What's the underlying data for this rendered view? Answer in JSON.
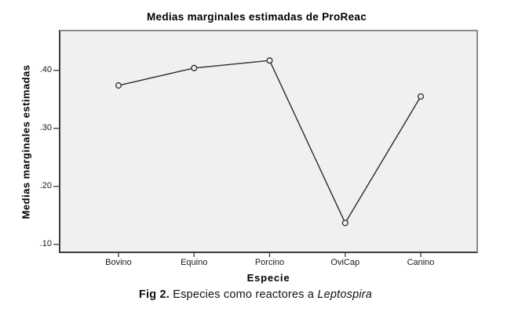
{
  "chart_data": {
    "type": "line",
    "title": "Medias marginales estimadas de ProReac",
    "xlabel": "Especie",
    "ylabel": "Medias marginales estimadas",
    "categories": [
      "Bovino",
      "Equino",
      "Porcino",
      "OviCap",
      "Canino"
    ],
    "values": [
      0.374,
      0.404,
      0.417,
      0.137,
      0.355
    ],
    "ylim": [
      0.085,
      0.47
    ],
    "yticks": [
      0.4,
      0.3,
      0.2,
      0.1
    ],
    "ytick_labels": [
      ".40",
      ".30",
      ".20",
      ".10"
    ],
    "grid": false,
    "legend": "none",
    "marker": "open-circle",
    "line_color": "#2b2b2b",
    "plot_bg": "#f0f0f0",
    "frame_color": "#8c8c8c",
    "axis_color": "#3d3d3d"
  },
  "caption": {
    "fig_label": "Fig 2.",
    "text": " Especies como reactores a ",
    "italic": "Leptospira"
  }
}
